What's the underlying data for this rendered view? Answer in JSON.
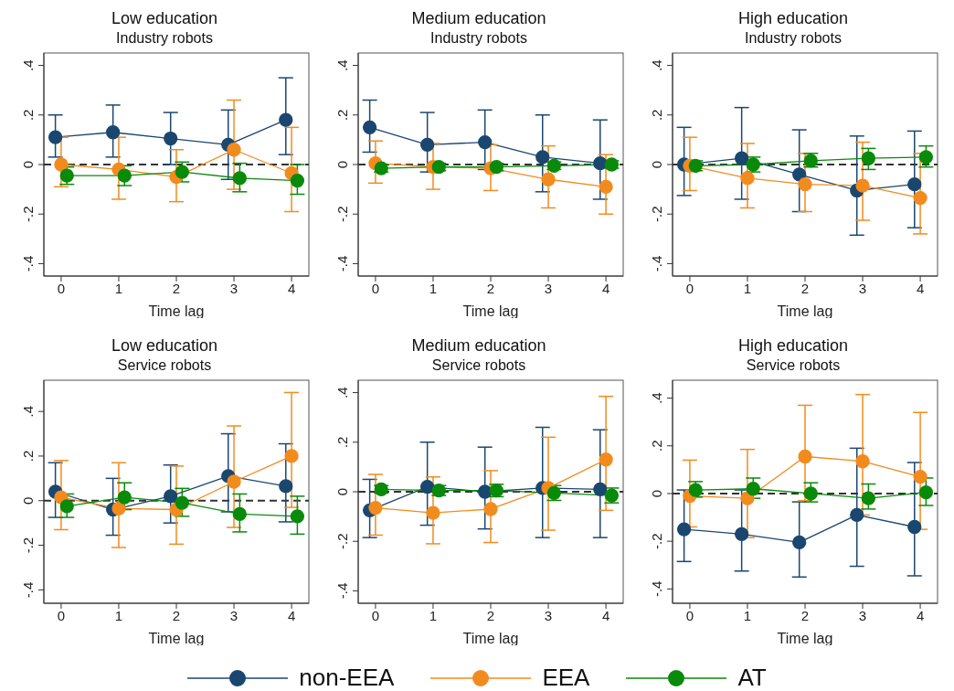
{
  "chart_data": [
    {
      "type": "line",
      "title": "Low education",
      "subtitle": "Industry robots",
      "xlabel": "Time lag",
      "xlim": [
        -0.3,
        4.3
      ],
      "xticks": [
        0,
        1,
        2,
        3,
        4
      ],
      "ylim": [
        -0.45,
        0.45
      ],
      "yticks": [
        {
          "value": -0.4,
          "label": "-.4"
        },
        {
          "value": -0.2,
          "label": "-.2"
        },
        {
          "value": 0,
          "label": "0"
        },
        {
          "value": 0.2,
          "label": ".2"
        },
        {
          "value": 0.4,
          "label": ".4"
        }
      ],
      "legend": "bottom",
      "marker": "circle",
      "ref_lines": [
        {
          "axis": "y",
          "value": 0,
          "color": "#333333",
          "line_style": "dashed"
        }
      ],
      "series": [
        {
          "name": "non-EEA",
          "color": "#1a476f",
          "x": [
            -0.1,
            0.9,
            1.9,
            2.9,
            3.9
          ],
          "values": [
            0.11,
            0.13,
            0.105,
            0.08,
            0.18
          ],
          "errors": [
            [
              0.03,
              0.2
            ],
            [
              0.03,
              0.24
            ],
            [
              0,
              0.21
            ],
            [
              -0.06,
              0.22
            ],
            [
              0.04,
              0.35
            ]
          ]
        },
        {
          "name": "EEA",
          "color": "#f28b1e",
          "x": [
            0,
            1,
            2,
            3,
            4
          ],
          "values": [
            0,
            -0.02,
            -0.05,
            0.06,
            -0.035
          ],
          "errors": [
            [
              -0.09,
              0.11
            ],
            [
              -0.14,
              0.11
            ],
            [
              -0.15,
              0.06
            ],
            [
              -0.1,
              0.26
            ],
            [
              -0.19,
              0.15
            ]
          ]
        },
        {
          "name": "AT",
          "color": "#0a8a0a",
          "x": [
            0.1,
            1.1,
            2.1,
            3.1,
            4.1
          ],
          "values": [
            -0.045,
            -0.045,
            -0.03,
            -0.055,
            -0.065
          ],
          "errors": [
            [
              -0.08,
              -0.01
            ],
            [
              -0.085,
              -0.005
            ],
            [
              -0.07,
              0.01
            ],
            [
              -0.11,
              0.005
            ],
            [
              -0.12,
              0
            ]
          ]
        }
      ]
    },
    {
      "type": "line",
      "title": "Medium education",
      "subtitle": "Industry robots",
      "xlabel": "Time lag",
      "xlim": [
        -0.3,
        4.3
      ],
      "xticks": [
        0,
        1,
        2,
        3,
        4
      ],
      "ylim": [
        -0.45,
        0.45
      ],
      "yticks": [
        {
          "value": -0.4,
          "label": "-.4"
        },
        {
          "value": -0.2,
          "label": "-.2"
        },
        {
          "value": 0,
          "label": "0"
        },
        {
          "value": 0.2,
          "label": ".2"
        },
        {
          "value": 0.4,
          "label": ".4"
        }
      ],
      "legend": "bottom",
      "marker": "circle",
      "ref_lines": [
        {
          "axis": "y",
          "value": 0,
          "color": "#333333",
          "line_style": "dashed"
        }
      ],
      "series": [
        {
          "name": "non-EEA",
          "color": "#1a476f",
          "x": [
            -0.1,
            0.9,
            1.9,
            2.9,
            3.9
          ],
          "values": [
            0.15,
            0.08,
            0.09,
            0.03,
            0.005
          ],
          "errors": [
            [
              0.05,
              0.26
            ],
            [
              -0.03,
              0.21
            ],
            [
              -0.02,
              0.22
            ],
            [
              -0.11,
              0.2
            ],
            [
              -0.14,
              0.18
            ]
          ]
        },
        {
          "name": "EEA",
          "color": "#f28b1e",
          "x": [
            0,
            1,
            2,
            3,
            4
          ],
          "values": [
            0.005,
            -0.01,
            -0.015,
            -0.06,
            -0.09
          ],
          "errors": [
            [
              -0.075,
              0.095
            ],
            [
              -0.1,
              0.085
            ],
            [
              -0.105,
              0.08
            ],
            [
              -0.175,
              0.075
            ],
            [
              -0.2,
              0.04
            ]
          ]
        },
        {
          "name": "AT",
          "color": "#0a8a0a",
          "x": [
            0.1,
            1.1,
            2.1,
            3.1,
            4.1
          ],
          "values": [
            -0.015,
            -0.01,
            -0.01,
            -0.005,
            0
          ],
          "errors": [
            [
              -0.03,
              0
            ],
            [
              -0.025,
              0.005
            ],
            [
              -0.025,
              0.005
            ],
            [
              -0.02,
              0.01
            ],
            [
              -0.015,
              0.015
            ]
          ]
        }
      ]
    },
    {
      "type": "line",
      "title": "High education",
      "subtitle": "Industry robots",
      "xlabel": "Time lag",
      "xlim": [
        -0.3,
        4.3
      ],
      "xticks": [
        0,
        1,
        2,
        3,
        4
      ],
      "ylim": [
        -0.45,
        0.45
      ],
      "yticks": [
        {
          "value": -0.4,
          "label": "-.4"
        },
        {
          "value": -0.2,
          "label": "-.2"
        },
        {
          "value": 0,
          "label": "0"
        },
        {
          "value": 0.2,
          "label": ".2"
        },
        {
          "value": 0.4,
          "label": ".4"
        }
      ],
      "legend": "bottom",
      "marker": "circle",
      "ref_lines": [
        {
          "axis": "y",
          "value": 0,
          "color": "#333333",
          "line_style": "dashed"
        }
      ],
      "series": [
        {
          "name": "non-EEA",
          "color": "#1a476f",
          "x": [
            -0.1,
            0.9,
            1.9,
            2.9,
            3.9
          ],
          "values": [
            0,
            0.025,
            -0.04,
            -0.105,
            -0.08
          ],
          "errors": [
            [
              -0.125,
              0.15
            ],
            [
              -0.14,
              0.23
            ],
            [
              -0.19,
              0.14
            ],
            [
              -0.285,
              0.115
            ],
            [
              -0.255,
              0.135
            ]
          ]
        },
        {
          "name": "EEA",
          "color": "#f28b1e",
          "x": [
            0,
            1,
            2,
            3,
            4
          ],
          "values": [
            -0.005,
            -0.055,
            -0.08,
            -0.085,
            -0.135
          ],
          "errors": [
            [
              -0.105,
              0.11
            ],
            [
              -0.175,
              0.085
            ],
            [
              -0.19,
              0.045
            ],
            [
              -0.225,
              0.09
            ],
            [
              -0.28,
              0.045
            ]
          ]
        },
        {
          "name": "AT",
          "color": "#0a8a0a",
          "x": [
            0.1,
            1.1,
            2.1,
            3.1,
            4.1
          ],
          "values": [
            -0.005,
            0,
            0.015,
            0.025,
            0.03
          ],
          "errors": [
            [
              -0.025,
              0.015
            ],
            [
              -0.03,
              0.03
            ],
            [
              -0.01,
              0.045
            ],
            [
              -0.02,
              0.065
            ],
            [
              -0.01,
              0.075
            ]
          ]
        }
      ]
    },
    {
      "type": "line",
      "title": "Low education",
      "subtitle": "Service robots",
      "xlabel": "Time lag",
      "xlim": [
        -0.3,
        4.3
      ],
      "xticks": [
        0,
        1,
        2,
        3,
        4
      ],
      "ylim": [
        -0.46,
        0.54
      ],
      "yticks": [
        {
          "value": -0.4,
          "label": "-.4"
        },
        {
          "value": -0.2,
          "label": "-.2"
        },
        {
          "value": 0,
          "label": "0"
        },
        {
          "value": 0.2,
          "label": ".2"
        },
        {
          "value": 0.4,
          "label": ".4"
        }
      ],
      "legend": "bottom",
      "marker": "circle",
      "ref_lines": [
        {
          "axis": "y",
          "value": 0,
          "color": "#333333",
          "line_style": "dashed"
        }
      ],
      "series": [
        {
          "name": "non-EEA",
          "color": "#1a476f",
          "x": [
            -0.1,
            0.9,
            1.9,
            2.9,
            3.9
          ],
          "values": [
            0.04,
            -0.04,
            0.02,
            0.11,
            0.065
          ],
          "errors": [
            [
              -0.075,
              0.17
            ],
            [
              -0.155,
              0.1
            ],
            [
              -0.1,
              0.16
            ],
            [
              -0.05,
              0.3
            ],
            [
              -0.095,
              0.255
            ]
          ]
        },
        {
          "name": "EEA",
          "color": "#f28b1e",
          "x": [
            0,
            1,
            2,
            3,
            4
          ],
          "values": [
            0.015,
            -0.035,
            -0.04,
            0.085,
            0.2
          ],
          "errors": [
            [
              -0.13,
              0.18
            ],
            [
              -0.21,
              0.17
            ],
            [
              -0.195,
              0.155
            ],
            [
              -0.12,
              0.335
            ],
            [
              -0.03,
              0.485
            ]
          ]
        },
        {
          "name": "AT",
          "color": "#0a8a0a",
          "x": [
            0.1,
            1.1,
            2.1,
            3.1,
            4.1
          ],
          "values": [
            -0.025,
            0.015,
            -0.01,
            -0.06,
            -0.07
          ],
          "errors": [
            [
              -0.075,
              0.03
            ],
            [
              -0.04,
              0.08
            ],
            [
              -0.07,
              0.055
            ],
            [
              -0.14,
              0.03
            ],
            [
              -0.15,
              0.02
            ]
          ]
        }
      ]
    },
    {
      "type": "line",
      "title": "Medium education",
      "subtitle": "Service robots",
      "xlabel": "Time lag",
      "xlim": [
        -0.3,
        4.3
      ],
      "xticks": [
        0,
        1,
        2,
        3,
        4
      ],
      "ylim": [
        -0.45,
        0.45
      ],
      "yticks": [
        {
          "value": -0.4,
          "label": "-.4"
        },
        {
          "value": -0.2,
          "label": "-.2"
        },
        {
          "value": 0,
          "label": "0"
        },
        {
          "value": 0.2,
          "label": ".2"
        },
        {
          "value": 0.4,
          "label": ".4"
        }
      ],
      "legend": "bottom",
      "marker": "circle",
      "ref_lines": [
        {
          "axis": "y",
          "value": 0,
          "color": "#333333",
          "line_style": "dashed"
        }
      ],
      "series": [
        {
          "name": "non-EEA",
          "color": "#1a476f",
          "x": [
            -0.1,
            0.9,
            1.9,
            2.9,
            3.9
          ],
          "values": [
            -0.075,
            0.02,
            0,
            0.015,
            0.01
          ],
          "errors": [
            [
              -0.185,
              0.05
            ],
            [
              -0.135,
              0.2
            ],
            [
              -0.15,
              0.18
            ],
            [
              -0.185,
              0.26
            ],
            [
              -0.185,
              0.25
            ]
          ]
        },
        {
          "name": "EEA",
          "color": "#f28b1e",
          "x": [
            0,
            1,
            2,
            3,
            4
          ],
          "values": [
            -0.065,
            -0.085,
            -0.07,
            0.015,
            0.13
          ],
          "errors": [
            [
              -0.175,
              0.07
            ],
            [
              -0.21,
              0.06
            ],
            [
              -0.205,
              0.085
            ],
            [
              -0.155,
              0.22
            ],
            [
              -0.075,
              0.385
            ]
          ]
        },
        {
          "name": "AT",
          "color": "#0a8a0a",
          "x": [
            0.1,
            1.1,
            2.1,
            3.1,
            4.1
          ],
          "values": [
            0.01,
            0.005,
            0.005,
            -0.005,
            -0.015
          ],
          "errors": [
            [
              -0.005,
              0.025
            ],
            [
              -0.015,
              0.025
            ],
            [
              -0.02,
              0.03
            ],
            [
              -0.035,
              0.025
            ],
            [
              -0.045,
              0.015
            ]
          ]
        }
      ]
    },
    {
      "type": "line",
      "title": "High education",
      "subtitle": "Service robots",
      "xlabel": "Time lag",
      "xlim": [
        -0.3,
        4.3
      ],
      "xticks": [
        0,
        1,
        2,
        3,
        4
      ],
      "ylim": [
        -0.46,
        0.475
      ],
      "yticks": [
        {
          "value": -0.4,
          "label": "-.4"
        },
        {
          "value": -0.2,
          "label": "-.2"
        },
        {
          "value": 0,
          "label": "0"
        },
        {
          "value": 0.2,
          "label": ".2"
        },
        {
          "value": 0.4,
          "label": ".4"
        }
      ],
      "legend": "bottom",
      "marker": "circle",
      "ref_lines": [
        {
          "axis": "y",
          "value": 0,
          "color": "#333333",
          "line_style": "dashed"
        }
      ],
      "series": [
        {
          "name": "non-EEA",
          "color": "#1a476f",
          "x": [
            -0.1,
            0.9,
            1.9,
            2.9,
            3.9
          ],
          "values": [
            -0.15,
            -0.17,
            -0.205,
            -0.09,
            -0.14
          ],
          "errors": [
            [
              -0.285,
              0.015
            ],
            [
              -0.325,
              0.015
            ],
            [
              -0.35,
              -0.035
            ],
            [
              -0.305,
              0.19
            ],
            [
              -0.345,
              0.13
            ]
          ]
        },
        {
          "name": "EEA",
          "color": "#f28b1e",
          "x": [
            0,
            1,
            2,
            3,
            4
          ],
          "values": [
            -0.01,
            -0.02,
            0.155,
            0.135,
            0.07
          ],
          "errors": [
            [
              -0.14,
              0.14
            ],
            [
              -0.185,
              0.185
            ],
            [
              -0.03,
              0.37
            ],
            [
              -0.09,
              0.415
            ],
            [
              -0.15,
              0.34
            ]
          ]
        },
        {
          "name": "AT",
          "color": "#0a8a0a",
          "x": [
            0.1,
            1.1,
            2.1,
            3.1,
            4.1
          ],
          "values": [
            0.015,
            0.02,
            0,
            -0.02,
            0.005
          ],
          "errors": [
            [
              -0.015,
              0.05
            ],
            [
              -0.02,
              0.065
            ],
            [
              -0.035,
              0.045
            ],
            [
              -0.065,
              0.04
            ],
            [
              -0.05,
              0.065
            ]
          ]
        }
      ]
    }
  ]
}
